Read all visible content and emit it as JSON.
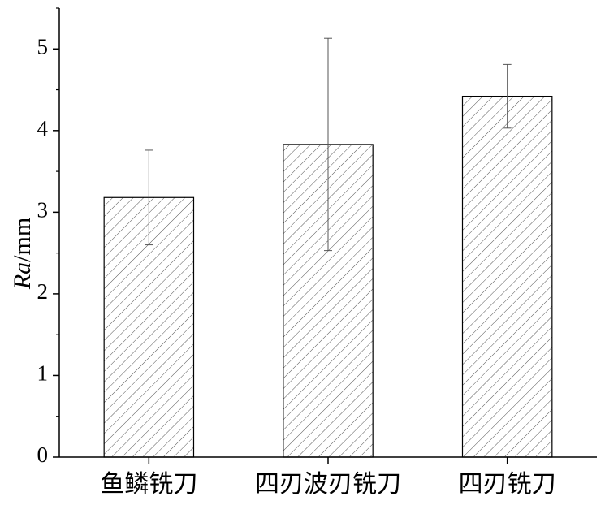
{
  "chart_data": {
    "type": "bar",
    "categories": [
      "鱼鳞铣刀",
      "四刃波刃铣刀",
      "四刃铣刀"
    ],
    "values": [
      3.18,
      3.83,
      4.42
    ],
    "errors": [
      0.58,
      1.3,
      0.39
    ],
    "ylabel_parts": [
      "Ra",
      "/mm"
    ],
    "ylim": [
      0,
      5.5
    ],
    "yticks": [
      0,
      1,
      2,
      3,
      4,
      5
    ],
    "yminorticks": [
      0.5,
      1.5,
      2.5,
      3.5,
      4.5,
      5.5
    ],
    "color": "#555555",
    "hatch": true,
    "grid": false
  }
}
